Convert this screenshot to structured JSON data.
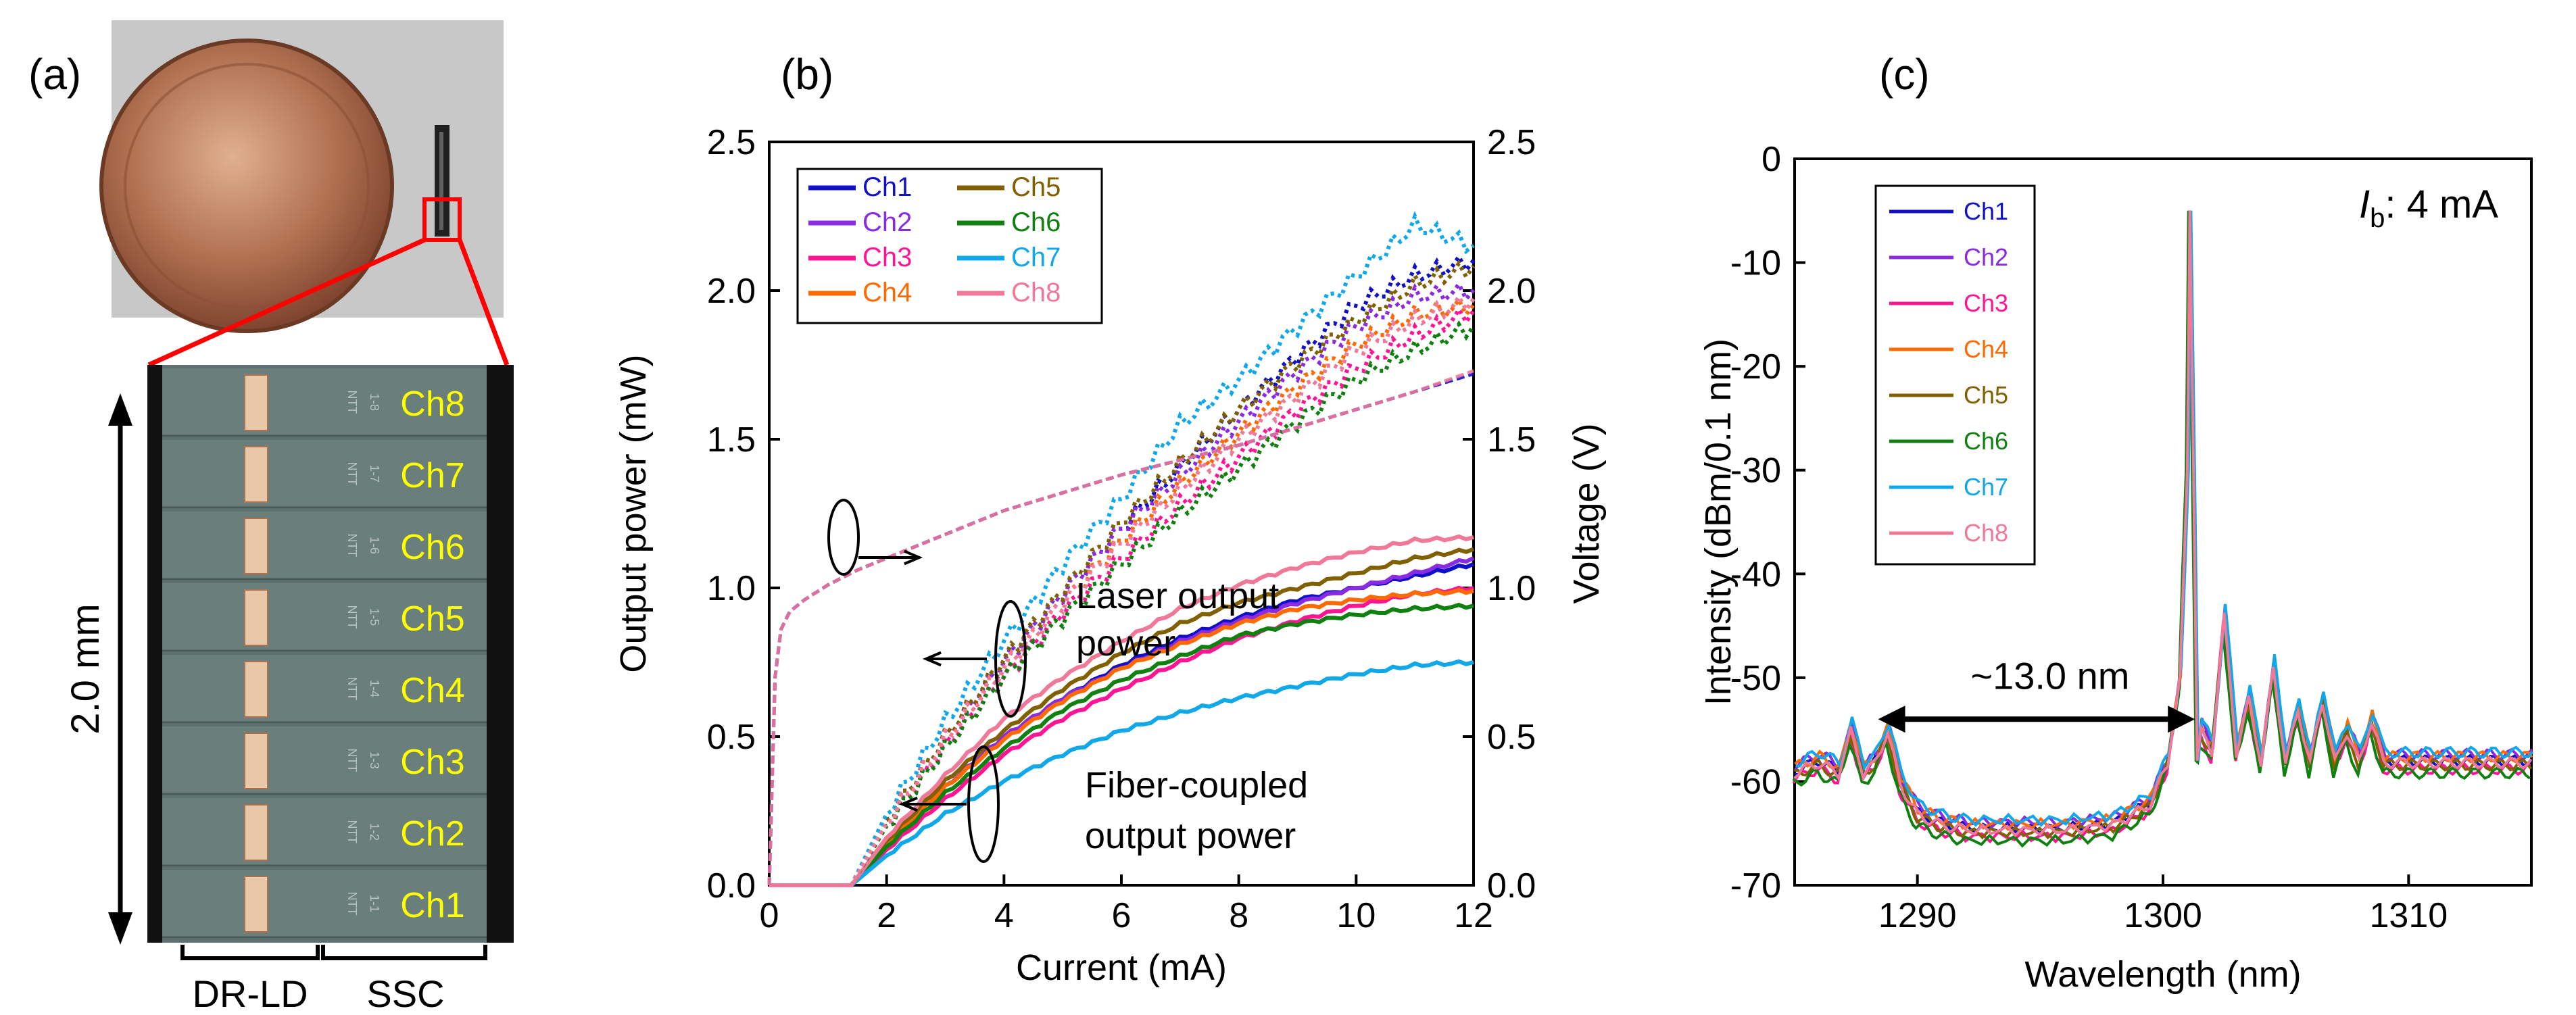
{
  "panels": {
    "a": {
      "label": "(a)",
      "channel_labels": [
        "Ch8",
        "Ch7",
        "Ch6",
        "Ch5",
        "Ch4",
        "Ch3",
        "Ch2",
        "Ch1"
      ],
      "chip_marks": [
        "1-8",
        "1-7",
        "1-6",
        "1-5",
        "1-4",
        "1-3",
        "1-2",
        "1-1"
      ],
      "chip_brand": "NTT",
      "dimension_label": "2.0 mm",
      "bottom_labels": [
        "DR-LD",
        "SSC"
      ],
      "colors": {
        "channel_text": "#ffff00",
        "zoom_lines": "#ff0000",
        "chip_bg": "#6e8580"
      }
    },
    "b": {
      "label": "(b)",
      "annotation_laser": [
        "Laser output",
        "power"
      ],
      "annotation_fiber": [
        "Fiber-coupled",
        "output power"
      ]
    },
    "c": {
      "label": "(c)",
      "bias_label_main": "I",
      "bias_label_sub": "b",
      "bias_label_rest": ": 4 mA",
      "spacing_label": "~13.0 nm"
    }
  },
  "chart_data": [
    {
      "panel": "b",
      "type": "line",
      "xlabel": "Current (mA)",
      "ylabel": "Output power (mW)",
      "y2label": "Voltage (V)",
      "xlim": [
        0,
        12
      ],
      "ylim": [
        0,
        2.5
      ],
      "y2lim": [
        0,
        2.5
      ],
      "xticks": [
        "0",
        "2",
        "4",
        "6",
        "8",
        "10",
        "12"
      ],
      "yticks": [
        "0.0",
        "0.5",
        "1.0",
        "1.5",
        "2.0",
        "2.5"
      ],
      "y2ticks": [
        "0.0",
        "0.5",
        "1.0",
        "1.5",
        "2.0",
        "2.5"
      ],
      "grid": false,
      "legend_position": "top-left",
      "series": [
        {
          "name": "Ch1",
          "color": "#1010c8"
        },
        {
          "name": "Ch2",
          "color": "#8a2be2"
        },
        {
          "name": "Ch3",
          "color": "#ff1493"
        },
        {
          "name": "Ch4",
          "color": "#ff6a00"
        },
        {
          "name": "Ch5",
          "color": "#806000"
        },
        {
          "name": "Ch6",
          "color": "#108010"
        },
        {
          "name": "Ch7",
          "color": "#10a8e8"
        },
        {
          "name": "Ch8",
          "color": "#f07898"
        }
      ],
      "fiber_power": {
        "x": [
          0,
          1.4,
          2,
          3,
          4,
          5,
          6,
          7,
          8,
          9,
          10,
          11,
          12
        ],
        "Ch1": [
          0,
          0,
          0.14,
          0.33,
          0.5,
          0.63,
          0.74,
          0.83,
          0.9,
          0.96,
          1.0,
          1.04,
          1.08
        ],
        "Ch2": [
          0,
          0,
          0.14,
          0.33,
          0.5,
          0.63,
          0.73,
          0.82,
          0.89,
          0.95,
          1.0,
          1.05,
          1.1
        ],
        "Ch3": [
          0,
          0,
          0.12,
          0.29,
          0.44,
          0.56,
          0.66,
          0.75,
          0.83,
          0.89,
          0.94,
          0.98,
          1.0
        ],
        "Ch4": [
          0,
          0,
          0.14,
          0.33,
          0.49,
          0.62,
          0.73,
          0.81,
          0.88,
          0.93,
          0.96,
          0.98,
          0.99
        ],
        "Ch5": [
          0,
          0,
          0.15,
          0.35,
          0.52,
          0.66,
          0.78,
          0.88,
          0.95,
          1.0,
          1.05,
          1.1,
          1.13
        ],
        "Ch6": [
          0,
          0,
          0.13,
          0.31,
          0.46,
          0.59,
          0.69,
          0.77,
          0.84,
          0.88,
          0.91,
          0.93,
          0.94
        ],
        "Ch7": [
          0,
          0,
          0.1,
          0.24,
          0.35,
          0.44,
          0.52,
          0.58,
          0.63,
          0.67,
          0.71,
          0.74,
          0.75
        ],
        "Ch8": [
          0,
          0,
          0.16,
          0.37,
          0.56,
          0.7,
          0.82,
          0.93,
          1.01,
          1.07,
          1.12,
          1.16,
          1.17
        ]
      },
      "laser_power": {
        "x": [
          0,
          1.4,
          2,
          3,
          4,
          5,
          6,
          7,
          8,
          9,
          10,
          11,
          12
        ],
        "Ch1": [
          0,
          0,
          0.22,
          0.5,
          0.75,
          0.98,
          1.2,
          1.41,
          1.6,
          1.78,
          1.95,
          2.05,
          2.1
        ],
        "Ch2": [
          0,
          0,
          0.22,
          0.5,
          0.75,
          0.98,
          1.2,
          1.38,
          1.56,
          1.73,
          1.88,
          1.98,
          2.0
        ],
        "Ch3": [
          0,
          0,
          0.2,
          0.47,
          0.7,
          0.92,
          1.1,
          1.28,
          1.44,
          1.6,
          1.74,
          1.85,
          1.93
        ],
        "Ch4": [
          0,
          0,
          0.21,
          0.49,
          0.73,
          0.95,
          1.16,
          1.35,
          1.52,
          1.68,
          1.82,
          1.92,
          1.95
        ],
        "Ch5": [
          0,
          0,
          0.22,
          0.5,
          0.76,
          0.99,
          1.22,
          1.42,
          1.6,
          1.76,
          1.9,
          2.02,
          2.08
        ],
        "Ch6": [
          0,
          0,
          0.2,
          0.46,
          0.7,
          0.9,
          1.08,
          1.25,
          1.4,
          1.56,
          1.7,
          1.8,
          1.88
        ],
        "Ch7": [
          0,
          0,
          0.24,
          0.55,
          0.82,
          1.08,
          1.3,
          1.55,
          1.7,
          1.88,
          2.05,
          2.22,
          2.15
        ],
        "Ch8": [
          0,
          0,
          0.21,
          0.49,
          0.73,
          0.95,
          1.15,
          1.33,
          1.5,
          1.65,
          1.8,
          1.9,
          1.97
        ]
      },
      "voltage": {
        "x": [
          0,
          0.1,
          0.2,
          0.35,
          0.6,
          1,
          1.5,
          2,
          3,
          4,
          5,
          6,
          7,
          8,
          9,
          10,
          11,
          12
        ],
        "Ch1": [
          0,
          0.7,
          0.86,
          0.92,
          0.96,
          1.01,
          1.06,
          1.1,
          1.18,
          1.26,
          1.32,
          1.38,
          1.43,
          1.48,
          1.54,
          1.6,
          1.66,
          1.72
        ],
        "Ch8": [
          0,
          0.7,
          0.86,
          0.92,
          0.96,
          1.01,
          1.06,
          1.1,
          1.18,
          1.26,
          1.32,
          1.38,
          1.43,
          1.48,
          1.54,
          1.6,
          1.66,
          1.73
        ]
      }
    },
    {
      "panel": "c",
      "type": "line",
      "xlabel": "Wavelength (nm)",
      "ylabel": "Intensity (dBm/0.1 nm)",
      "xlim": [
        1285,
        1315
      ],
      "ylim": [
        -70,
        0
      ],
      "xticks": [
        "1290",
        "1300",
        "1310"
      ],
      "yticks": [
        "0",
        "-10",
        "-20",
        "-30",
        "-40",
        "-50",
        "-60",
        "-70"
      ],
      "grid": false,
      "legend_position": "top-left",
      "series": [
        {
          "name": "Ch1",
          "color": "#1010c8"
        },
        {
          "name": "Ch2",
          "color": "#8a2be2"
        },
        {
          "name": "Ch3",
          "color": "#ff1493"
        },
        {
          "name": "Ch4",
          "color": "#ff6a00"
        },
        {
          "name": "Ch5",
          "color": "#806000"
        },
        {
          "name": "Ch6",
          "color": "#108010"
        },
        {
          "name": "Ch7",
          "color": "#10a8e8"
        },
        {
          "name": "Ch8",
          "color": "#f07898"
        }
      ],
      "spectrum": {
        "x": [
          1285,
          1286,
          1286.8,
          1287.3,
          1287.8,
          1288.3,
          1288.8,
          1289.3,
          1290,
          1291,
          1292,
          1294,
          1296,
          1298,
          1299.5,
          1300.2,
          1300.7,
          1301.0,
          1301.1,
          1301.25,
          1301.4,
          1301.55,
          1302,
          1302.5,
          1303,
          1303.5,
          1304,
          1304.5,
          1305,
          1305.5,
          1306,
          1306.5,
          1307,
          1307.5,
          1308,
          1308.5,
          1309,
          1310,
          1311,
          1312,
          1313,
          1314,
          1315
        ],
        "y": [
          -59,
          -58,
          -59,
          -55,
          -59,
          -58,
          -55,
          -60,
          -63,
          -64,
          -64.5,
          -64.5,
          -64.5,
          -64,
          -62,
          -58,
          -50,
          -30,
          -5,
          -30,
          -58,
          -55,
          -57,
          -44,
          -57,
          -52,
          -58,
          -49,
          -58,
          -53,
          -58,
          -52,
          -58,
          -55,
          -58,
          -54,
          -58,
          -58,
          -58,
          -58,
          -58,
          -58,
          -58
        ],
        "offsets": {
          "Ch1": 0,
          "Ch2": 0.6,
          "Ch3": -0.8,
          "Ch4": 0.4,
          "Ch5": -0.4,
          "Ch6": -1.2,
          "Ch7": 0.8,
          "Ch8": -0.2
        }
      }
    }
  ]
}
